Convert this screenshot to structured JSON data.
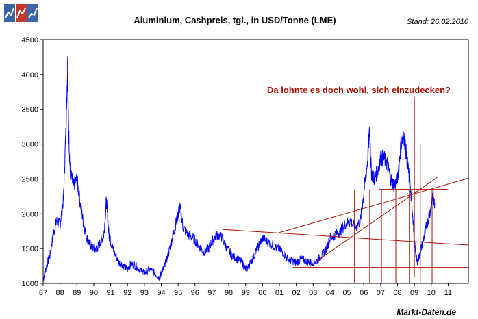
{
  "chart_data": {
    "type": "line",
    "title": "Aluminium, Cashpreis, tgl., in USD/Tonne (LME)",
    "stand": "Stand: 26.02.2010",
    "annotation": "Da lohnte es doch wohl, sich einzudecken?",
    "source": "Markt-Daten.de",
    "xlabel": "",
    "ylabel": "",
    "x_tick_labels": [
      "87",
      "88",
      "89",
      "90",
      "91",
      "92",
      "93",
      "94",
      "95",
      "96",
      "97",
      "98",
      "99",
      "00",
      "01",
      "02",
      "03",
      "04",
      "05",
      "06",
      "07",
      "08",
      "09",
      "10",
      "11"
    ],
    "y_ticks": [
      1000,
      1500,
      2000,
      2500,
      3000,
      3500,
      4000,
      4500
    ],
    "xlim": [
      1987,
      2012.2
    ],
    "ylim": [
      1000,
      4500
    ],
    "grid": false,
    "line_color": "#0000ff",
    "annotation_color": "#aa1100",
    "series": [
      {
        "x": [
          1987.0,
          1987.2,
          1987.4,
          1987.6,
          1987.8,
          1988.0,
          1988.2,
          1988.35,
          1988.45,
          1988.5,
          1988.6,
          1988.8,
          1989.0,
          1989.2,
          1989.4,
          1989.6,
          1989.8,
          1990.0,
          1990.2,
          1990.4,
          1990.6,
          1990.75,
          1990.9,
          1991.0,
          1991.2,
          1991.5,
          1991.8,
          1992.0,
          1992.2,
          1992.5,
          1992.8,
          1993.0,
          1993.3,
          1993.6,
          1993.9,
          1994.0,
          1994.2,
          1994.4,
          1994.6,
          1994.8,
          1995.0,
          1995.1,
          1995.3,
          1995.6,
          1995.9,
          1996.2,
          1996.5,
          1996.8,
          1997.0,
          1997.3,
          1997.6,
          1997.9,
          1998.2,
          1998.5,
          1998.8,
          1999.0,
          1999.2,
          1999.5,
          1999.8,
          2000.0,
          2000.3,
          2000.6,
          2000.9,
          2001.2,
          2001.5,
          2001.8,
          2002.0,
          2002.3,
          2002.6,
          2002.9,
          2003.2,
          2003.5,
          2003.8,
          2004.0,
          2004.3,
          2004.6,
          2004.9,
          2005.2,
          2005.5,
          2005.8,
          2006.0,
          2006.2,
          2006.35,
          2006.45,
          2006.6,
          2006.8,
          2007.0,
          2007.2,
          2007.4,
          2007.6,
          2007.8,
          2008.0,
          2008.2,
          2008.4,
          2008.55,
          2008.7,
          2008.9,
          2009.0,
          2009.15,
          2009.3,
          2009.5,
          2009.7,
          2009.9,
          2010.0,
          2010.1,
          2010.2
        ],
        "y": [
          1050,
          1250,
          1400,
          1700,
          1900,
          1850,
          2200,
          3200,
          4150,
          3300,
          2600,
          2400,
          2500,
          2150,
          1850,
          1650,
          1550,
          1500,
          1500,
          1600,
          1700,
          2200,
          1700,
          1600,
          1450,
          1300,
          1250,
          1200,
          1280,
          1250,
          1180,
          1150,
          1200,
          1150,
          1080,
          1150,
          1250,
          1400,
          1600,
          1800,
          2000,
          2100,
          1800,
          1700,
          1650,
          1550,
          1450,
          1500,
          1600,
          1700,
          1650,
          1500,
          1400,
          1350,
          1300,
          1200,
          1250,
          1400,
          1550,
          1650,
          1600,
          1550,
          1500,
          1450,
          1350,
          1320,
          1300,
          1350,
          1320,
          1300,
          1320,
          1400,
          1500,
          1650,
          1700,
          1750,
          1850,
          1900,
          1800,
          1900,
          2300,
          2700,
          3200,
          2600,
          2500,
          2600,
          2800,
          2800,
          2700,
          2500,
          2400,
          2500,
          3000,
          3100,
          2800,
          2500,
          2000,
          1600,
          1300,
          1400,
          1600,
          1800,
          2000,
          2100,
          2300,
          2150
        ]
      }
    ]
  }
}
